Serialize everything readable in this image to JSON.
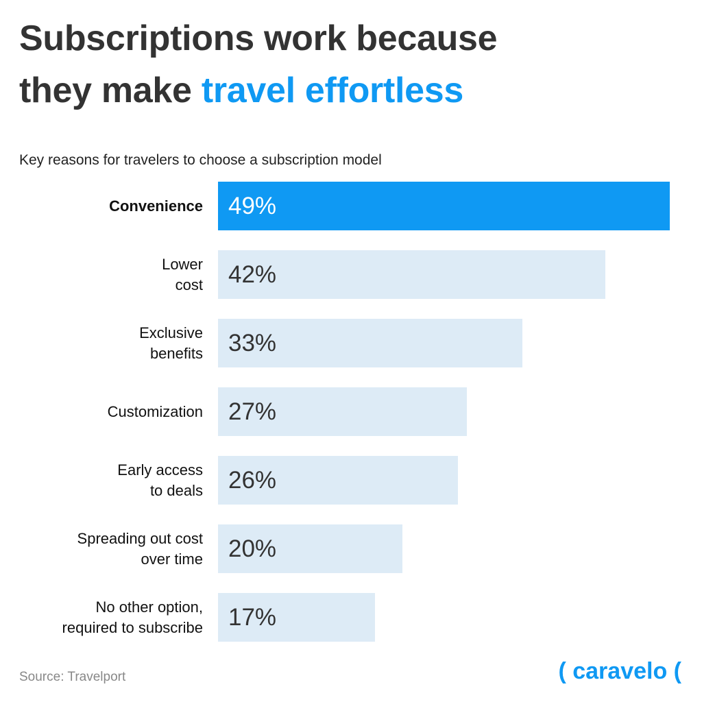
{
  "chart_data": {
    "type": "bar",
    "orientation": "horizontal",
    "title": "Subscriptions work because\nthey make",
    "title_highlight": "travel effortless",
    "subtitle": "Key reasons for travelers to choose a subscription model",
    "categories": [
      "Convenience",
      "Lower\ncost",
      "Exclusive\nbenefits",
      "Customization",
      "Early access\nto deals",
      "Spreading out cost\nover time",
      "No other option,\nrequired to subscribe"
    ],
    "values": [
      49,
      42,
      33,
      27,
      26,
      20,
      17
    ],
    "value_labels": [
      "49%",
      "42%",
      "33%",
      "27%",
      "26%",
      "20%",
      "17%"
    ],
    "color": "#ddebf6",
    "highlight_color": "#0f99f3",
    "highlight_index": 0,
    "source": "Source: Travelport",
    "brand": "( caravelo ("
  }
}
